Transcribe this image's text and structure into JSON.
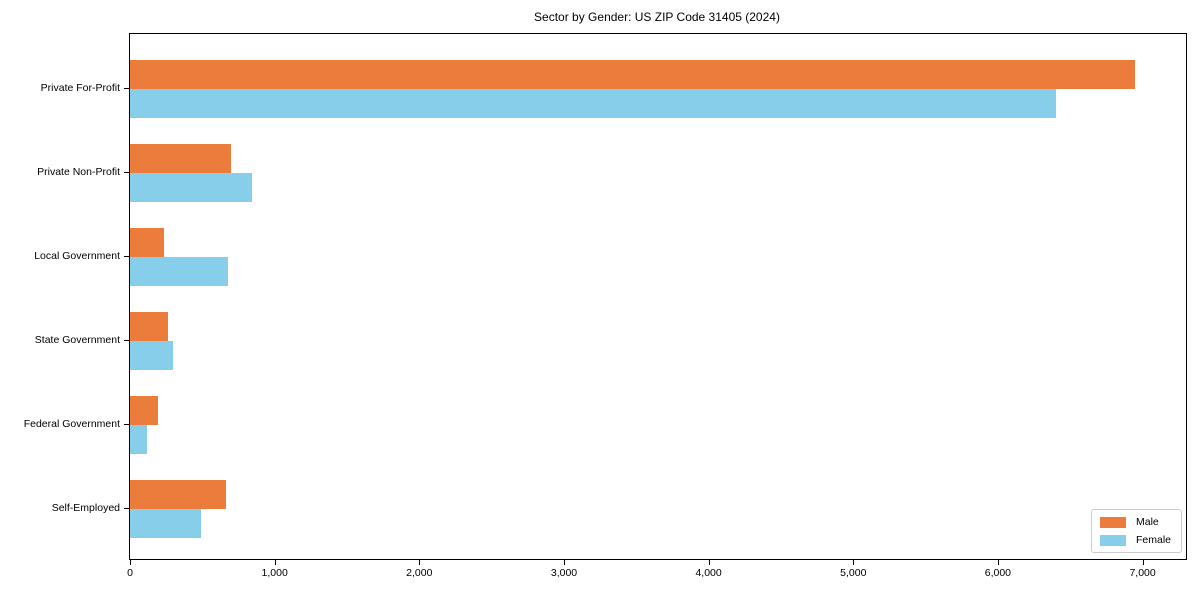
{
  "chart_data": {
    "type": "bar",
    "orientation": "horizontal",
    "title": "Sector by Gender: US ZIP Code 31405 (2024)",
    "xlabel": "",
    "ylabel": "",
    "categories": [
      "Private For-Profit",
      "Private Non-Profit",
      "Local Government",
      "State Government",
      "Federal Government",
      "Self-Employed"
    ],
    "series": [
      {
        "name": "Male",
        "color": "#eb7c3c",
        "values": [
          6950,
          700,
          235,
          265,
          190,
          660
        ]
      },
      {
        "name": "Female",
        "color": "#87ceeb",
        "values": [
          6400,
          840,
          680,
          300,
          115,
          490
        ]
      }
    ],
    "xlim": [
      0,
      7300
    ],
    "xticks": {
      "values": [
        0,
        1000,
        2000,
        3000,
        4000,
        5000,
        6000,
        7000
      ],
      "labels": [
        "0",
        "1,000",
        "2,000",
        "3,000",
        "4,000",
        "5,000",
        "6,000",
        "7,000"
      ]
    },
    "legend": {
      "position": "lower right",
      "entries": [
        "Male",
        "Female"
      ]
    },
    "grid": false
  }
}
